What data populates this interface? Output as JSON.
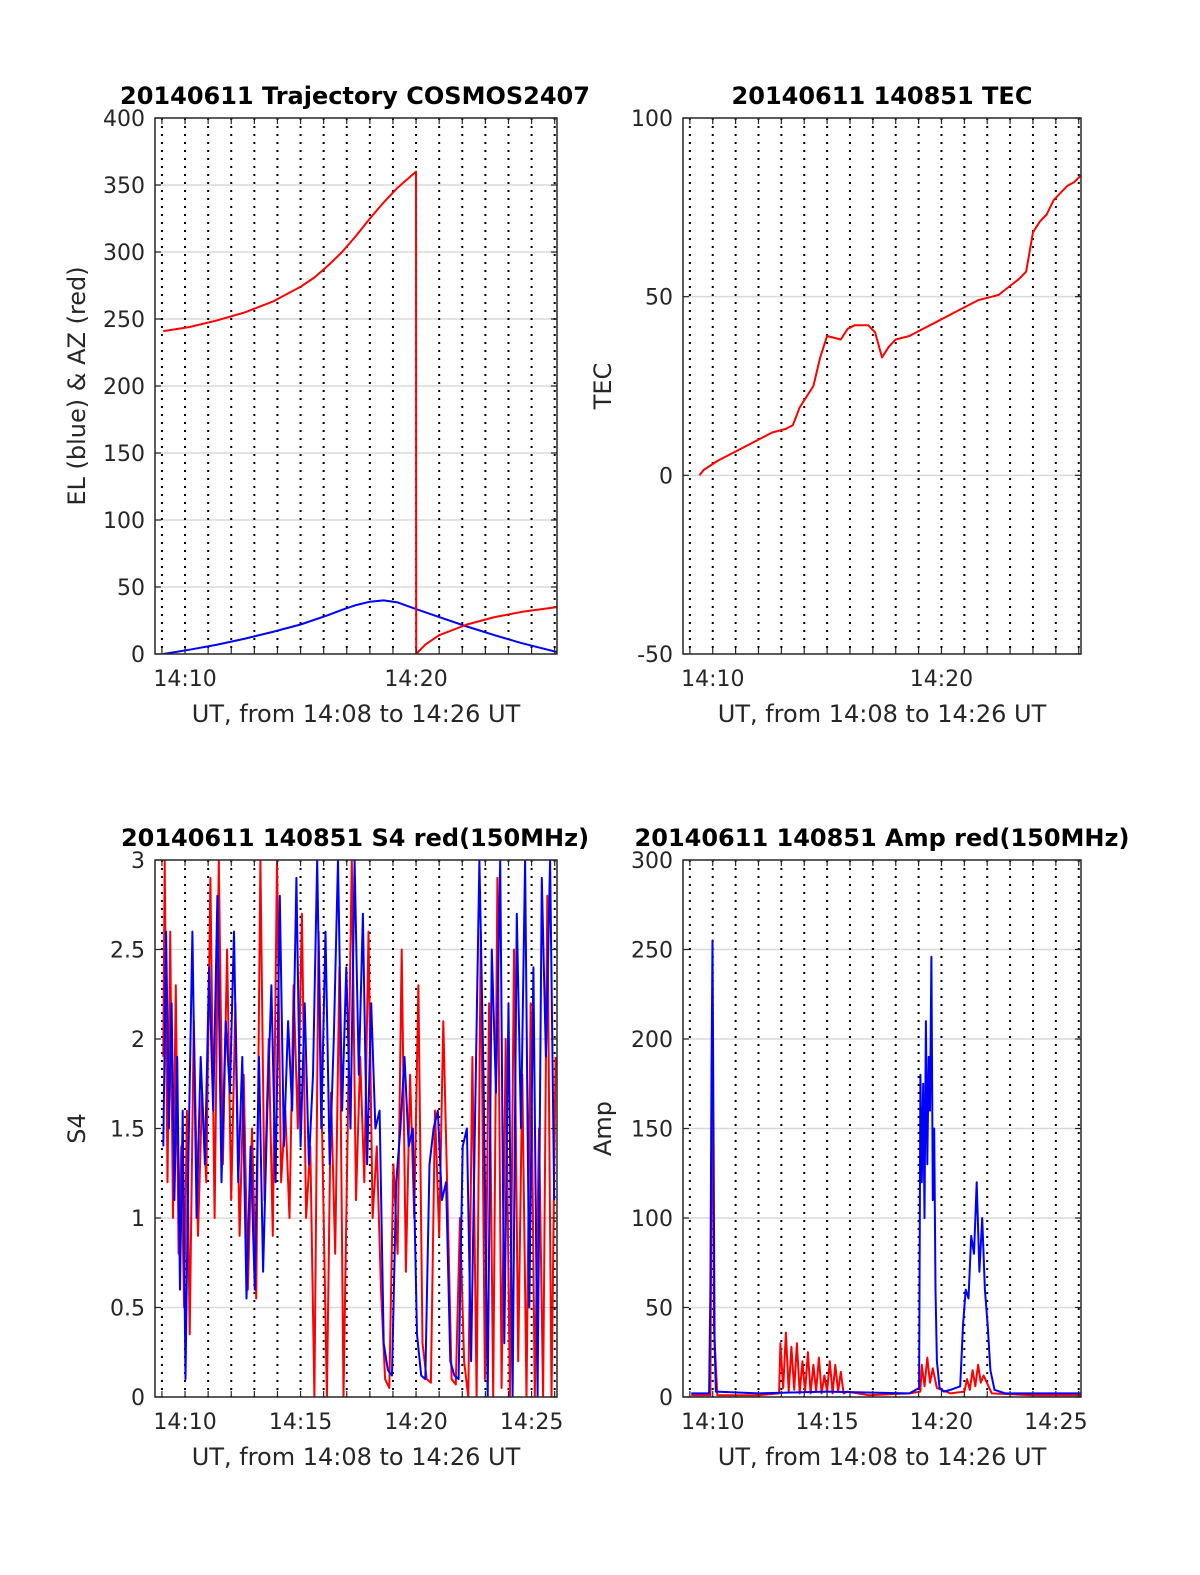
{
  "figure_note": "",
  "chart_data": [
    {
      "type": "line",
      "title": "20140611 Trajectory COSMOS2407",
      "xlabel": "UT, from 14:08 to 14:26 UT",
      "ylabel": "EL (blue) & AZ (red)",
      "xlim": [
        14.145,
        14.435
      ],
      "ylim": [
        0,
        400
      ],
      "xticks": [
        {
          "v": 14.1667,
          "label": "14:10"
        },
        {
          "v": 14.3333,
          "label": "14:20"
        }
      ],
      "yticks": [
        {
          "v": 0,
          "label": "0"
        },
        {
          "v": 50,
          "label": "50"
        },
        {
          "v": 100,
          "label": "100"
        },
        {
          "v": 150,
          "label": "150"
        },
        {
          "v": 200,
          "label": "200"
        },
        {
          "v": 250,
          "label": "250"
        },
        {
          "v": 300,
          "label": "300"
        },
        {
          "v": 350,
          "label": "350"
        },
        {
          "v": 400,
          "label": "400"
        }
      ],
      "grid": true,
      "series": [
        {
          "color": "#0000ff",
          "x": [
            14.151,
            14.17,
            14.19,
            14.21,
            14.23,
            14.25,
            14.27,
            14.28,
            14.29,
            14.3,
            14.31,
            14.32,
            14.3333,
            14.35,
            14.37,
            14.39,
            14.41,
            14.435
          ],
          "y": [
            0,
            3.2,
            7,
            11.5,
            16.5,
            22,
            29,
            33,
            36.5,
            39,
            40,
            38.5,
            33.5,
            27.5,
            20.5,
            14,
            8,
            1.5
          ]
        },
        {
          "color": "#ff0000",
          "x": [
            14.151,
            14.17,
            14.19,
            14.21,
            14.23,
            14.25,
            14.26,
            14.27,
            14.28,
            14.29,
            14.3,
            14.31,
            14.32,
            14.33,
            14.3333,
            14.3334,
            14.34,
            14.35,
            14.37,
            14.39,
            14.41,
            14.435
          ],
          "y": [
            241,
            244,
            249,
            255,
            263,
            274,
            281,
            290,
            300,
            312,
            325,
            337,
            348,
            357,
            360,
            0,
            7,
            14,
            22,
            27.5,
            31.5,
            35
          ]
        }
      ]
    },
    {
      "type": "line",
      "title": "20140611 140851 TEC",
      "xlabel": "UT, from 14:08 to 14:26 UT",
      "ylabel": "TEC",
      "xlim": [
        14.145,
        14.435
      ],
      "ylim": [
        -50,
        100
      ],
      "xticks": [
        {
          "v": 14.1667,
          "label": "14:10"
        },
        {
          "v": 14.3333,
          "label": "14:20"
        }
      ],
      "yticks": [
        {
          "v": -50,
          "label": "-50"
        },
        {
          "v": 0,
          "label": "0"
        },
        {
          "v": 50,
          "label": "50"
        },
        {
          "v": 100,
          "label": "100"
        }
      ],
      "grid": true,
      "series": [
        {
          "color": "#ff0000",
          "x": [
            14.157,
            14.16,
            14.17,
            14.18,
            14.19,
            14.2,
            14.21,
            14.22,
            14.225,
            14.23,
            14.24,
            14.245,
            14.25,
            14.26,
            14.265,
            14.27,
            14.28,
            14.285,
            14.29,
            14.295,
            14.3,
            14.31,
            14.32,
            14.33,
            14.34,
            14.35,
            14.36,
            14.37,
            14.375,
            14.38,
            14.39,
            14.395,
            14.4,
            14.405,
            14.41,
            14.415,
            14.42,
            14.425,
            14.43,
            14.435
          ],
          "y": [
            0,
            1.5,
            4,
            6,
            8,
            10,
            12,
            13,
            14,
            19,
            25,
            33,
            39,
            38,
            41,
            42,
            42,
            40,
            33,
            36,
            38,
            39,
            41,
            43,
            45,
            47,
            49,
            50,
            50.5,
            52,
            55,
            57,
            68,
            71,
            73,
            77,
            79,
            81,
            82,
            84
          ]
        }
      ]
    },
    {
      "type": "line",
      "title": "20140611 140851 S4 red(150MHz)",
      "xlabel": "UT, from 14:08 to 14:26 UT",
      "ylabel": "S4",
      "xlim": [
        14.145,
        14.435
      ],
      "ylim": [
        0,
        3
      ],
      "xticks": [
        {
          "v": 14.1667,
          "label": "14:10"
        },
        {
          "v": 14.25,
          "label": "14:15"
        },
        {
          "v": 14.3333,
          "label": "14:20"
        },
        {
          "v": 14.4167,
          "label": "14:25"
        }
      ],
      "yticks": [
        {
          "v": 0,
          "label": "0"
        },
        {
          "v": 0.5,
          "label": "0.5"
        },
        {
          "v": 1,
          "label": "1"
        },
        {
          "v": 1.5,
          "label": "1.5"
        },
        {
          "v": 2,
          "label": "2"
        },
        {
          "v": 2.5,
          "label": "2.5"
        },
        {
          "v": 3,
          "label": "3"
        }
      ],
      "grid": true,
      "series": [
        {
          "color": "#ff0000",
          "x": [
            14.151,
            14.152,
            14.154,
            14.156,
            14.158,
            14.16,
            14.162,
            14.164,
            14.166,
            14.168,
            14.17,
            14.173,
            14.176,
            14.179,
            14.182,
            14.185,
            14.188,
            14.191,
            14.194,
            14.197,
            14.2,
            14.203,
            14.206,
            14.209,
            14.212,
            14.215,
            14.218,
            14.221,
            14.224,
            14.227,
            14.23,
            14.233,
            14.236,
            14.239,
            14.242,
            14.245,
            14.248,
            14.251,
            14.254,
            14.257,
            14.26,
            14.263,
            14.266,
            14.269,
            14.272,
            14.275,
            14.278,
            14.281,
            14.284,
            14.287,
            14.29,
            14.293,
            14.296,
            14.299,
            14.302,
            14.305,
            14.308,
            14.311,
            14.314,
            14.317,
            14.32,
            14.323,
            14.326,
            14.329,
            14.332,
            14.335,
            14.338,
            14.341,
            14.344,
            14.347,
            14.35,
            14.353,
            14.356,
            14.359,
            14.362,
            14.365,
            14.368,
            14.371,
            14.374,
            14.377,
            14.38,
            14.383,
            14.386,
            14.389,
            14.392,
            14.395,
            14.398,
            14.401,
            14.404,
            14.407,
            14.41,
            14.413,
            14.416,
            14.419,
            14.422,
            14.425,
            14.428,
            14.431,
            14.434
          ],
          "y": [
            1.9,
            3,
            1.2,
            2.6,
            1.0,
            2.3,
            0.8,
            1.4,
            0.5,
            1.6,
            0.35,
            2.1,
            0.9,
            1.7,
            1.2,
            2.9,
            1.0,
            3,
            1.3,
            2.5,
            1.1,
            2.2,
            0.9,
            1.8,
            0.6,
            1.5,
            0.55,
            3,
            1.1,
            2.0,
            0.9,
            3,
            1.2,
            1.6,
            1.0,
            2.3,
            1.5,
            2.7,
            1.0,
            1.4,
            0.0,
            2.6,
            1.3,
            0.0,
            1.7,
            0.8,
            2.4,
            0.0,
            1.5,
            3,
            1.1,
            1.9,
            1.2,
            2.6,
            1.0,
            1.4,
            0.6,
            0.1,
            0.05,
            1.3,
            0.8,
            2.5,
            0.7,
            1.8,
            1.0,
            2.3,
            0.3,
            0.1,
            0.08,
            1.6,
            0.9,
            2.1,
            1.1,
            0.1,
            0.07,
            1.0,
            0.2,
            0.0,
            1.9,
            0.0,
            2.6,
            0.1,
            2.2,
            0.0,
            2.9,
            0.05,
            2.0,
            0.0,
            2.5,
            0.2,
            1.8,
            0.0,
            2.2,
            0.0,
            1.5,
            0.0,
            2.8,
            0.0,
            1.9
          ]
        },
        {
          "color": "#0000ff",
          "x": [
            14.151,
            14.153,
            14.155,
            14.157,
            14.159,
            14.161,
            14.163,
            14.165,
            14.167,
            14.169,
            14.172,
            14.175,
            14.178,
            14.181,
            14.184,
            14.187,
            14.19,
            14.193,
            14.196,
            14.199,
            14.202,
            14.205,
            14.208,
            14.211,
            14.214,
            14.217,
            14.22,
            14.223,
            14.226,
            14.229,
            14.232,
            14.235,
            14.238,
            14.241,
            14.244,
            14.247,
            14.25,
            14.253,
            14.256,
            14.259,
            14.262,
            14.265,
            14.268,
            14.271,
            14.274,
            14.277,
            14.28,
            14.283,
            14.286,
            14.289,
            14.292,
            14.295,
            14.298,
            14.301,
            14.304,
            14.307,
            14.31,
            14.313,
            14.316,
            14.319,
            14.322,
            14.325,
            14.328,
            14.331,
            14.334,
            14.337,
            14.34,
            14.343,
            14.346,
            14.349,
            14.352,
            14.355,
            14.358,
            14.361,
            14.364,
            14.367,
            14.37,
            14.373,
            14.376,
            14.379,
            14.382,
            14.385,
            14.388,
            14.391,
            14.394,
            14.397,
            14.4,
            14.403,
            14.406,
            14.409,
            14.412,
            14.415,
            14.418,
            14.421,
            14.424,
            14.427,
            14.43,
            14.433
          ],
          "y": [
            1.4,
            2.6,
            1.5,
            2.2,
            1.1,
            1.9,
            0.6,
            1.6,
            0.1,
            1.3,
            2.6,
            1.0,
            1.9,
            1.3,
            2.4,
            1.6,
            2.8,
            1.2,
            2.1,
            1.7,
            2.6,
            1.2,
            1.9,
            0.55,
            1.4,
            0.6,
            1.9,
            0.7,
            1.6,
            2.3,
            1.2,
            2.8,
            1.4,
            2.1,
            1.6,
            2.9,
            1.4,
            2.2,
            1.3,
            1.8,
            3,
            1.5,
            2.6,
            1.3,
            2.0,
            3,
            1.6,
            2.4,
            1.5,
            3,
            1.8,
            2.7,
            1.3,
            2.2,
            1.5,
            1.6,
            0.3,
            0.15,
            0.12,
            1.2,
            1.5,
            1.9,
            1.4,
            1.5,
            0.35,
            0.12,
            0.1,
            1.3,
            1.5,
            1.6,
            1.1,
            1.2,
            0.2,
            0.12,
            0.1,
            1.4,
            1.5,
            0.2,
            1.6,
            3,
            1.8,
            0.0,
            2.5,
            1.7,
            3,
            0.3,
            2.2,
            0.0,
            2.7,
            1.5,
            3,
            0.5,
            2.4,
            0.0,
            2.9,
            1.9,
            3,
            1.1
          ]
        }
      ]
    },
    {
      "type": "line",
      "title": "20140611 140851 Amp red(150MHz)",
      "xlabel": "UT, from 14:08 to 14:26 UT",
      "ylabel": "Amp",
      "xlim": [
        14.145,
        14.435
      ],
      "ylim": [
        0,
        300
      ],
      "xticks": [
        {
          "v": 14.1667,
          "label": "14:10"
        },
        {
          "v": 14.25,
          "label": "14:15"
        },
        {
          "v": 14.3333,
          "label": "14:20"
        },
        {
          "v": 14.4167,
          "label": "14:25"
        }
      ],
      "yticks": [
        {
          "v": 0,
          "label": "0"
        },
        {
          "v": 50,
          "label": "50"
        },
        {
          "v": 100,
          "label": "100"
        },
        {
          "v": 150,
          "label": "150"
        },
        {
          "v": 200,
          "label": "200"
        },
        {
          "v": 250,
          "label": "250"
        },
        {
          "v": 300,
          "label": "300"
        }
      ],
      "grid": true,
      "series": [
        {
          "color": "#ff0000",
          "x": [
            14.151,
            14.165,
            14.1655,
            14.1665,
            14.1675,
            14.17,
            14.2,
            14.215,
            14.216,
            14.218,
            14.22,
            14.222,
            14.224,
            14.226,
            14.228,
            14.23,
            14.232,
            14.234,
            14.236,
            14.238,
            14.24,
            14.242,
            14.244,
            14.246,
            14.248,
            14.25,
            14.252,
            14.254,
            14.256,
            14.258,
            14.26,
            14.262,
            14.265,
            14.28,
            14.31,
            14.318,
            14.319,
            14.321,
            14.323,
            14.325,
            14.327,
            14.33,
            14.34,
            14.35,
            14.352,
            14.354,
            14.356,
            14.358,
            14.36,
            14.362,
            14.364,
            14.37,
            14.4,
            14.435
          ],
          "y": [
            1,
            1,
            80,
            220,
            40,
            1,
            1,
            2,
            30,
            5,
            36,
            3,
            28,
            4,
            30,
            2,
            20,
            3,
            25,
            2,
            18,
            3,
            22,
            2,
            12,
            3,
            20,
            2,
            18,
            3,
            14,
            2,
            3,
            1,
            2,
            3,
            18,
            6,
            22,
            8,
            16,
            5,
            2,
            3,
            10,
            4,
            15,
            6,
            18,
            8,
            12,
            2,
            1,
            1
          ]
        },
        {
          "color": "#0000ff",
          "x": [
            14.151,
            14.164,
            14.165,
            14.1658,
            14.1665,
            14.1672,
            14.168,
            14.169,
            14.2,
            14.25,
            14.31,
            14.317,
            14.318,
            14.319,
            14.32,
            14.321,
            14.322,
            14.323,
            14.324,
            14.325,
            14.326,
            14.327,
            14.328,
            14.329,
            14.33,
            14.332,
            14.335,
            14.34,
            14.347,
            14.349,
            14.351,
            14.353,
            14.355,
            14.357,
            14.359,
            14.361,
            14.363,
            14.365,
            14.367,
            14.369,
            14.372,
            14.38,
            14.435
          ],
          "y": [
            2,
            2,
            60,
            180,
            255,
            150,
            30,
            3,
            2,
            3,
            2,
            5,
            180,
            120,
            175,
            100,
            210,
            130,
            190,
            160,
            246,
            110,
            150,
            60,
            20,
            5,
            3,
            4,
            6,
            40,
            60,
            55,
            90,
            80,
            120,
            70,
            100,
            60,
            40,
            15,
            4,
            2,
            2
          ]
        }
      ]
    }
  ]
}
